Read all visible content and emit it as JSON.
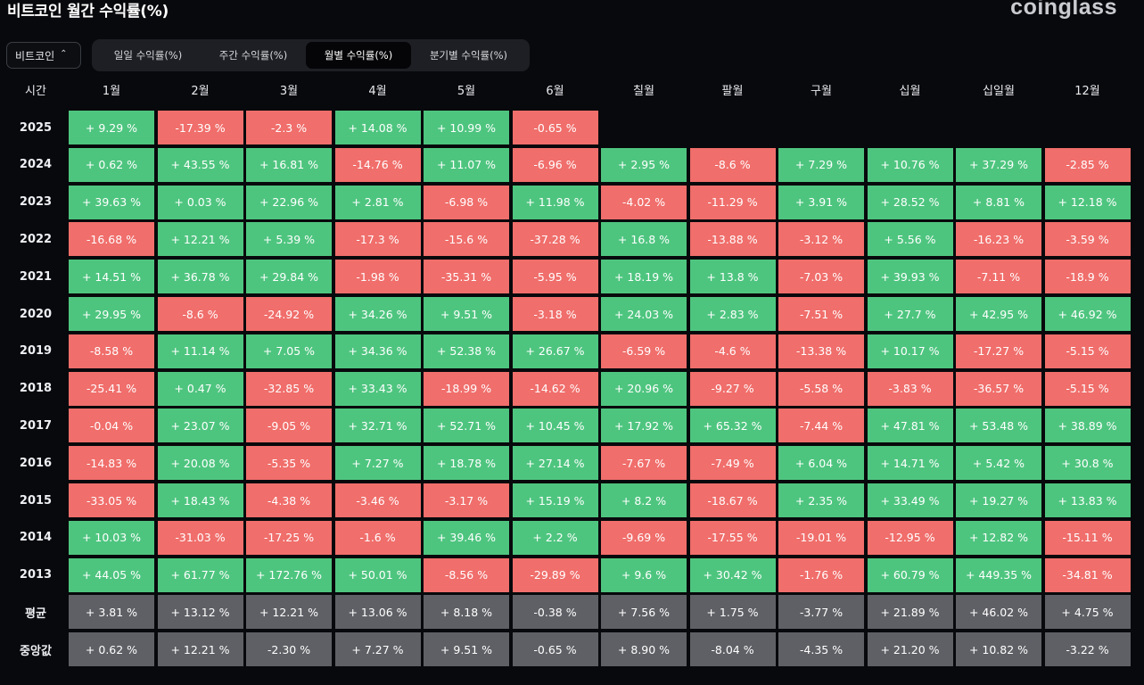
{
  "header": {
    "title": "비트코인 월간 수익률(%)",
    "brand": "coinglass"
  },
  "asset_select": {
    "value": "비트코인",
    "icon": "up-down-chevron-icon"
  },
  "tabs": [
    {
      "label": "일일 수익률(%)",
      "active": false
    },
    {
      "label": "주간 수익률(%)",
      "active": false
    },
    {
      "label": "월별 수익률(%)",
      "active": true
    },
    {
      "label": "분기별 수익률(%)",
      "active": false
    }
  ],
  "table": {
    "corner_label": "시간",
    "columns": [
      "1월",
      "2월",
      "3월",
      "4월",
      "5월",
      "6월",
      "칠월",
      "팔월",
      "구월",
      "십월",
      "십일월",
      "12월"
    ],
    "rows": [
      {
        "year": "2025",
        "values": [
          "+ 9.29 %",
          "-17.39 %",
          "-2.3 %",
          "+ 14.08 %",
          "+ 10.99 %",
          "-0.65 %",
          "",
          "",
          "",
          "",
          "",
          ""
        ]
      },
      {
        "year": "2024",
        "values": [
          "+ 0.62 %",
          "+ 43.55 %",
          "+ 16.81 %",
          "-14.76 %",
          "+ 11.07 %",
          "-6.96 %",
          "+ 2.95 %",
          "-8.6 %",
          "+ 7.29 %",
          "+ 10.76 %",
          "+ 37.29 %",
          "-2.85 %"
        ]
      },
      {
        "year": "2023",
        "values": [
          "+ 39.63 %",
          "+ 0.03 %",
          "+ 22.96 %",
          "+ 2.81 %",
          "-6.98 %",
          "+ 11.98 %",
          "-4.02 %",
          "-11.29 %",
          "+ 3.91 %",
          "+ 28.52 %",
          "+ 8.81 %",
          "+ 12.18 %"
        ]
      },
      {
        "year": "2022",
        "values": [
          "-16.68 %",
          "+ 12.21 %",
          "+ 5.39 %",
          "-17.3 %",
          "-15.6 %",
          "-37.28 %",
          "+ 16.8 %",
          "-13.88 %",
          "-3.12 %",
          "+ 5.56 %",
          "-16.23 %",
          "-3.59 %"
        ]
      },
      {
        "year": "2021",
        "values": [
          "+ 14.51 %",
          "+ 36.78 %",
          "+ 29.84 %",
          "-1.98 %",
          "-35.31 %",
          "-5.95 %",
          "+ 18.19 %",
          "+ 13.8 %",
          "-7.03 %",
          "+ 39.93 %",
          "-7.11 %",
          "-18.9 %"
        ]
      },
      {
        "year": "2020",
        "values": [
          "+ 29.95 %",
          "-8.6 %",
          "-24.92 %",
          "+ 34.26 %",
          "+ 9.51 %",
          "-3.18 %",
          "+ 24.03 %",
          "+ 2.83 %",
          "-7.51 %",
          "+ 27.7 %",
          "+ 42.95 %",
          "+ 46.92 %"
        ]
      },
      {
        "year": "2019",
        "values": [
          "-8.58 %",
          "+ 11.14 %",
          "+ 7.05 %",
          "+ 34.36 %",
          "+ 52.38 %",
          "+ 26.67 %",
          "-6.59 %",
          "-4.6 %",
          "-13.38 %",
          "+ 10.17 %",
          "-17.27 %",
          "-5.15 %"
        ]
      },
      {
        "year": "2018",
        "values": [
          "-25.41 %",
          "+ 0.47 %",
          "-32.85 %",
          "+ 33.43 %",
          "-18.99 %",
          "-14.62 %",
          "+ 20.96 %",
          "-9.27 %",
          "-5.58 %",
          "-3.83 %",
          "-36.57 %",
          "-5.15 %"
        ]
      },
      {
        "year": "2017",
        "values": [
          "-0.04 %",
          "+ 23.07 %",
          "-9.05 %",
          "+ 32.71 %",
          "+ 52.71 %",
          "+ 10.45 %",
          "+ 17.92 %",
          "+ 65.32 %",
          "-7.44 %",
          "+ 47.81 %",
          "+ 53.48 %",
          "+ 38.89 %"
        ]
      },
      {
        "year": "2016",
        "values": [
          "-14.83 %",
          "+ 20.08 %",
          "-5.35 %",
          "+ 7.27 %",
          "+ 18.78 %",
          "+ 27.14 %",
          "-7.67 %",
          "-7.49 %",
          "+ 6.04 %",
          "+ 14.71 %",
          "+ 5.42 %",
          "+ 30.8 %"
        ]
      },
      {
        "year": "2015",
        "values": [
          "-33.05 %",
          "+ 18.43 %",
          "-4.38 %",
          "-3.46 %",
          "-3.17 %",
          "+ 15.19 %",
          "+ 8.2 %",
          "-18.67 %",
          "+ 2.35 %",
          "+ 33.49 %",
          "+ 19.27 %",
          "+ 13.83 %"
        ]
      },
      {
        "year": "2014",
        "values": [
          "+ 10.03 %",
          "-31.03 %",
          "-17.25 %",
          "-1.6 %",
          "+ 39.46 %",
          "+ 2.2 %",
          "-9.69 %",
          "-17.55 %",
          "-19.01 %",
          "-12.95 %",
          "+ 12.82 %",
          "-15.11 %"
        ]
      },
      {
        "year": "2013",
        "values": [
          "+ 44.05 %",
          "+ 61.77 %",
          "+ 172.76 %",
          "+ 50.01 %",
          "-8.56 %",
          "-29.89 %",
          "+ 9.6 %",
          "+ 30.42 %",
          "-1.76 %",
          "+ 60.79 %",
          "+ 449.35 %",
          "-34.81 %"
        ]
      }
    ],
    "summary_rows": [
      {
        "label": "평균",
        "values": [
          "+ 3.81 %",
          "+ 13.12 %",
          "+ 12.21 %",
          "+ 13.06 %",
          "+ 8.18 %",
          "-0.38 %",
          "+ 7.56 %",
          "+ 1.75 %",
          "-3.77 %",
          "+ 21.89 %",
          "+ 46.02 %",
          "+ 4.75 %"
        ]
      },
      {
        "label": "중앙값",
        "values": [
          "+ 0.62 %",
          "+ 12.21 %",
          "-2.30 %",
          "+ 7.27 %",
          "+ 9.51 %",
          "-0.65 %",
          "+ 8.90 %",
          "-8.04 %",
          "-4.35 %",
          "+ 21.20 %",
          "+ 10.82 %",
          "-3.22 %"
        ]
      }
    ]
  },
  "colors": {
    "positive": "#4ec57f",
    "negative": "#f06e6b",
    "summary": "#5f6065",
    "background": "#08090c"
  }
}
